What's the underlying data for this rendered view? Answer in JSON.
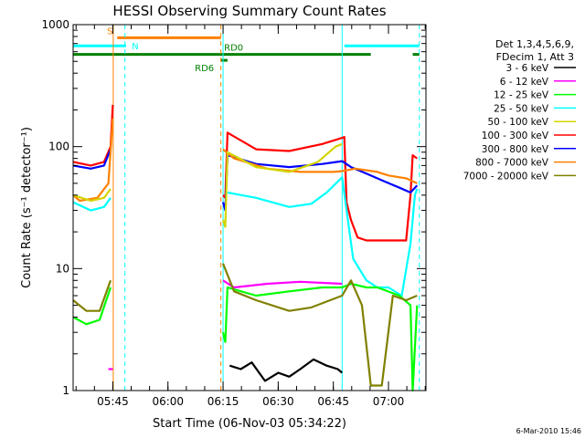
{
  "chart_data": {
    "type": "line",
    "title": "HESSI Observing Summary Count Rates",
    "xlabel": "Start Time (06-Nov-03 05:34:22)",
    "ylabel": "Count Rate (s⁻¹ detector⁻¹)",
    "ylim": [
      1,
      1000
    ],
    "yscale": "log",
    "yticks": [
      "1",
      "10",
      "100",
      "1000"
    ],
    "xlim_min": [
      5.57,
      7.17
    ],
    "xticks": [
      {
        "t": 5.75,
        "label": "05:45"
      },
      {
        "t": 6.0,
        "label": "06:00"
      },
      {
        "t": 6.25,
        "label": "06:15"
      },
      {
        "t": 6.5,
        "label": "06:30"
      },
      {
        "t": 6.75,
        "label": "06:45"
      },
      {
        "t": 7.0,
        "label": "07:00"
      }
    ],
    "legend": {
      "placement": "right",
      "header": [
        "Det 1,3,4,5,6,9,",
        "FDecim 1, Att 3"
      ],
      "series": [
        {
          "name": "3 - 6 keV",
          "color": "#000000"
        },
        {
          "name": "6 - 12 keV",
          "color": "#ff00ff"
        },
        {
          "name": "12 - 25 keV",
          "color": "#00ff00"
        },
        {
          "name": "25 - 50 keV",
          "color": "#00ffff"
        },
        {
          "name": "50 - 100 keV",
          "color": "#d4d400"
        },
        {
          "name": "100 - 300 keV",
          "color": "#ff0000"
        },
        {
          "name": "300 - 800 keV",
          "color": "#0000ff"
        },
        {
          "name": "800 - 7000 keV",
          "color": "#ff8000"
        },
        {
          "name": "7000 - 20000 keV",
          "color": "#808000"
        }
      ]
    },
    "annotations": {
      "bars": [
        {
          "label": "S",
          "color": "#ff8000",
          "level": 780,
          "segments": [
            [
              5.77,
              6.24
            ]
          ]
        },
        {
          "label": "N",
          "color": "#00ffff",
          "level": 670,
          "segments": [
            [
              5.57,
              5.81
            ],
            [
              6.8,
              7.14
            ]
          ]
        },
        {
          "label": "RD0",
          "color": "#008000",
          "level": 570,
          "segments": [
            [
              5.57,
              6.83
            ],
            [
              6.83,
              6.92
            ],
            [
              7.11,
              7.14
            ]
          ]
        },
        {
          "label": "RD6",
          "color": "#008000",
          "level": 510,
          "segments": [
            [
              6.24,
              6.27
            ]
          ]
        }
      ],
      "vlines": [
        {
          "t": 5.752,
          "color": "#ff8000",
          "style": "solid"
        },
        {
          "t": 5.805,
          "color": "#00ffff",
          "style": "dashed"
        },
        {
          "t": 6.24,
          "color": "#ff8000",
          "style": "dashed"
        },
        {
          "t": 6.25,
          "color": "#00ffff",
          "style": "solid"
        },
        {
          "t": 6.79,
          "color": "#00ffff",
          "style": "solid"
        },
        {
          "t": 7.14,
          "color": "#00ffff",
          "style": "dashed"
        }
      ]
    },
    "series_curves": [
      {
        "name": "100 - 300 keV",
        "color": "#ff0000",
        "points": [
          [
            5.57,
            75
          ],
          [
            5.65,
            70
          ],
          [
            5.71,
            75
          ],
          [
            5.74,
            100
          ],
          [
            5.75,
            220
          ],
          [
            5.752,
            null
          ],
          [
            6.25,
            40
          ],
          [
            6.26,
            38
          ],
          [
            6.27,
            130
          ],
          [
            6.4,
            95
          ],
          [
            6.55,
            92
          ],
          [
            6.7,
            105
          ],
          [
            6.79,
            118
          ],
          [
            6.8,
            120
          ],
          [
            6.81,
            35
          ],
          [
            6.83,
            25
          ],
          [
            6.86,
            18
          ],
          [
            6.9,
            17
          ],
          [
            6.95,
            17
          ],
          [
            7.0,
            17
          ],
          [
            7.08,
            17
          ],
          [
            7.1,
            40
          ],
          [
            7.11,
            85
          ],
          [
            7.13,
            80
          ]
        ]
      },
      {
        "name": "300 - 800 keV",
        "color": "#0000ff",
        "points": [
          [
            5.57,
            70
          ],
          [
            5.65,
            66
          ],
          [
            5.71,
            70
          ],
          [
            5.74,
            95
          ],
          [
            5.752,
            null
          ],
          [
            6.25,
            35
          ],
          [
            6.26,
            30
          ],
          [
            6.27,
            85
          ],
          [
            6.4,
            72
          ],
          [
            6.55,
            68
          ],
          [
            6.7,
            72
          ],
          [
            6.79,
            76
          ],
          [
            6.83,
            68
          ],
          [
            6.9,
            60
          ],
          [
            6.98,
            52
          ],
          [
            7.05,
            46
          ],
          [
            7.1,
            42
          ],
          [
            7.13,
            48
          ]
        ]
      },
      {
        "name": "800 - 7000 keV",
        "color": "#ff8000",
        "points": [
          [
            5.57,
            40
          ],
          [
            5.6,
            36
          ],
          [
            5.68,
            38
          ],
          [
            5.73,
            50
          ],
          [
            5.75,
            170
          ],
          [
            5.752,
            null
          ],
          [
            6.25,
            95
          ],
          [
            6.3,
            80
          ],
          [
            6.45,
            66
          ],
          [
            6.6,
            62
          ],
          [
            6.75,
            62
          ],
          [
            6.79,
            63
          ],
          [
            6.85,
            66
          ],
          [
            6.95,
            62
          ],
          [
            7.0,
            58
          ],
          [
            7.08,
            55
          ],
          [
            7.13,
            50
          ]
        ]
      },
      {
        "name": "50 - 100 keV",
        "color": "#d4d400",
        "points": [
          [
            5.57,
            40
          ],
          [
            5.65,
            36
          ],
          [
            5.71,
            38
          ],
          [
            5.74,
            45
          ],
          [
            5.752,
            null
          ],
          [
            6.25,
            25
          ],
          [
            6.26,
            22
          ],
          [
            6.27,
            90
          ],
          [
            6.4,
            68
          ],
          [
            6.55,
            62
          ],
          [
            6.68,
            75
          ],
          [
            6.76,
            100
          ],
          [
            6.79,
            105
          ],
          [
            6.81,
            null
          ]
        ]
      },
      {
        "name": "25 - 50 keV",
        "color": "#00ffff",
        "points": [
          [
            5.57,
            35
          ],
          [
            5.65,
            30
          ],
          [
            5.71,
            32
          ],
          [
            5.74,
            38
          ],
          [
            5.752,
            null
          ],
          [
            6.25,
            90
          ],
          [
            6.26,
            null
          ],
          [
            6.27,
            42
          ],
          [
            6.4,
            38
          ],
          [
            6.55,
            32
          ],
          [
            6.65,
            34
          ],
          [
            6.72,
            42
          ],
          [
            6.79,
            56
          ],
          [
            6.82,
            22
          ],
          [
            6.84,
            12
          ],
          [
            6.9,
            8
          ],
          [
            6.95,
            7
          ],
          [
            7.0,
            7
          ],
          [
            7.06,
            6
          ],
          [
            7.1,
            16
          ],
          [
            7.12,
            40
          ],
          [
            7.13,
            45
          ]
        ]
      },
      {
        "name": "6 - 12 keV",
        "color": "#ff00ff",
        "points": [
          [
            5.73,
            1.5
          ],
          [
            5.75,
            1.5
          ],
          [
            5.752,
            null
          ],
          [
            6.25,
            8
          ],
          [
            6.3,
            7
          ],
          [
            6.45,
            7.5
          ],
          [
            6.6,
            7.8
          ],
          [
            6.79,
            7.5
          ],
          [
            6.81,
            null
          ]
        ]
      },
      {
        "name": "12 - 25 keV",
        "color": "#00ff00",
        "points": [
          [
            5.57,
            4
          ],
          [
            5.63,
            3.5
          ],
          [
            5.69,
            3.8
          ],
          [
            5.74,
            7
          ],
          [
            5.752,
            null
          ],
          [
            6.25,
            3
          ],
          [
            6.26,
            2.5
          ],
          [
            6.27,
            7
          ],
          [
            6.4,
            6
          ],
          [
            6.55,
            6.5
          ],
          [
            6.7,
            7
          ],
          [
            6.79,
            7
          ],
          [
            6.83,
            7.5
          ],
          [
            6.9,
            7
          ],
          [
            6.95,
            7
          ],
          [
            7.05,
            6
          ],
          [
            7.1,
            5
          ],
          [
            7.11,
            1
          ],
          [
            7.13,
            5
          ]
        ]
      },
      {
        "name": "7000 - 20000 keV",
        "color": "#808000",
        "points": [
          [
            5.57,
            5.5
          ],
          [
            5.63,
            4.5
          ],
          [
            5.69,
            4.5
          ],
          [
            5.74,
            8
          ],
          [
            5.752,
            null
          ],
          [
            6.25,
            11
          ],
          [
            6.3,
            6.5
          ],
          [
            6.4,
            5.5
          ],
          [
            6.55,
            4.5
          ],
          [
            6.65,
            4.8
          ],
          [
            6.79,
            6
          ],
          [
            6.83,
            8
          ],
          [
            6.88,
            5
          ],
          [
            6.92,
            1.1
          ],
          [
            6.97,
            1.1
          ],
          [
            7.02,
            6
          ],
          [
            7.08,
            5.5
          ],
          [
            7.13,
            6
          ]
        ]
      },
      {
        "name": "3 - 6 keV",
        "color": "#000000",
        "points": [
          [
            6.28,
            1.6
          ],
          [
            6.33,
            1.5
          ],
          [
            6.38,
            1.7
          ],
          [
            6.44,
            1.2
          ],
          [
            6.5,
            1.4
          ],
          [
            6.55,
            1.3
          ],
          [
            6.6,
            1.5
          ],
          [
            6.66,
            1.8
          ],
          [
            6.72,
            1.6
          ],
          [
            6.77,
            1.5
          ],
          [
            6.79,
            1.4
          ]
        ]
      }
    ],
    "footer_date": "6-Mar-2010 15:46"
  }
}
